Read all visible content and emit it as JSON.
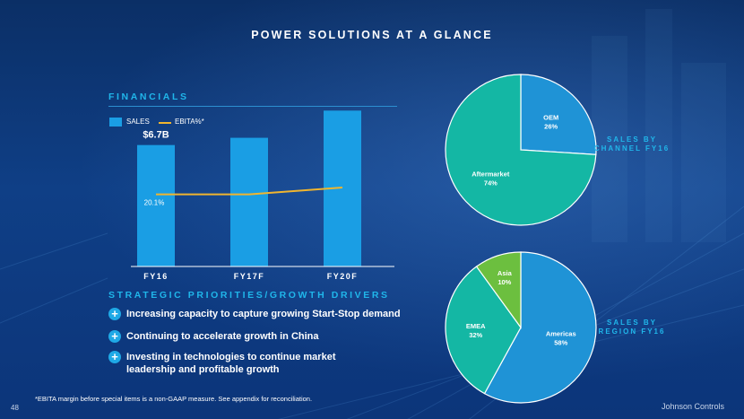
{
  "title": "POWER SOLUTIONS AT A GLANCE",
  "financials": {
    "heading": "FINANCIALS",
    "legend_sales": "SALES",
    "legend_ebita": "EBITA%*",
    "sales_callout": "$6.7B",
    "ebita_callout": "20.1%"
  },
  "chart_data": [
    {
      "type": "bar",
      "title": "FINANCIALS",
      "categories": [
        "FY16",
        "FY17F",
        "FY20F"
      ],
      "series": [
        {
          "name": "SALES",
          "values": [
            6.7,
            7.1,
            8.6
          ],
          "unit": "$B"
        },
        {
          "name": "EBITA%*",
          "type": "line",
          "values": [
            20.1,
            20.1,
            22.0
          ],
          "unit": "%"
        }
      ],
      "data_labels": {
        "FY16": "$6.7B"
      },
      "line_labels": {
        "FY16": "20.1%"
      },
      "ylim": [
        0,
        10
      ]
    },
    {
      "type": "pie",
      "title": "SALES BY CHANNEL FY16",
      "labels": [
        "OEM",
        "Aftermarket"
      ],
      "values": [
        26,
        74
      ],
      "colors": [
        "#1f93d6",
        "#14b7a4"
      ]
    },
    {
      "type": "pie",
      "title": "SALES BY REGION FY16",
      "labels": [
        "Americas",
        "EMEA",
        "Asia"
      ],
      "values": [
        58,
        32,
        10
      ],
      "colors": [
        "#1f93d6",
        "#14b7a4",
        "#6cbf3f"
      ]
    }
  ],
  "priorities": {
    "heading": "STRATEGIC PRIORITIES/GROWTH DRIVERS",
    "items": [
      "Increasing capacity to capture growing Start-Stop demand",
      "Continuing to accelerate growth in China",
      "Investing in technologies to continue market leadership and profitable growth"
    ],
    "plus_glyph": "+"
  },
  "channel_label": "SALES BY CHANNEL FY16",
  "region_label": "SALES BY REGION FY16",
  "footnote": "*EBITA margin before special items is a non-GAAP measure.  See appendix for reconciliation.",
  "page_number": "48",
  "brand": "Johnson Controls",
  "colors": {
    "accent": "#20b6ea",
    "bar": "#1a9ee4",
    "line": "#f0b52f"
  }
}
